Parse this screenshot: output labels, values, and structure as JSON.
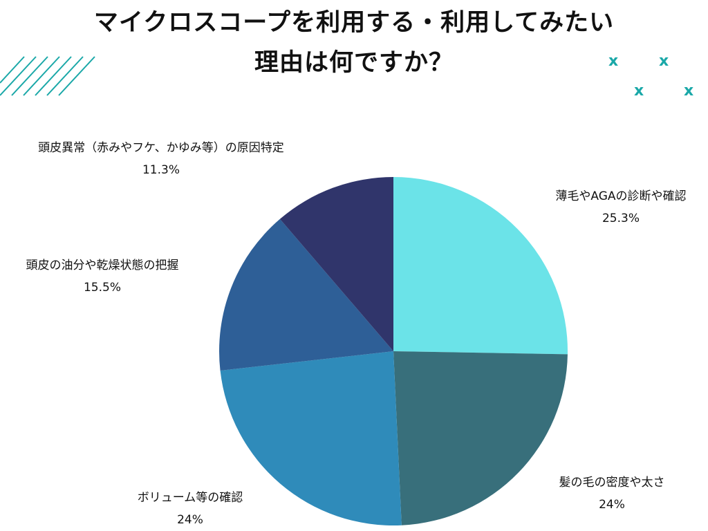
{
  "title": {
    "line1": "マイクロスコープを利用する・利用してみたい",
    "line2": "理由は何ですか？"
  },
  "decor": {
    "x_glyph": "x",
    "accent_color": "#1aa8a8"
  },
  "chart_data": {
    "type": "pie",
    "start_angle_deg": 0,
    "direction": "clockwise",
    "slices": [
      {
        "label": "薄毛やAGAの診断や確認",
        "value": 25.3,
        "value_label": "25.3%",
        "color": "#6be3e8"
      },
      {
        "label": "髪の毛の密度や太さ",
        "value": 24,
        "value_label": "24%",
        "color": "#386f7b"
      },
      {
        "label": "ボリューム等の確認",
        "value": 24,
        "value_label": "24%",
        "color": "#2f8bba"
      },
      {
        "label": "頭皮の油分や乾燥状態の把握",
        "value": 15.5,
        "value_label": "15.5%",
        "color": "#2e5f97"
      },
      {
        "label": "頭皮異常（赤みやフケ、かゆみ等）の原因特定",
        "value": 11.3,
        "value_label": "11.3%",
        "color": "#30356b"
      }
    ]
  }
}
